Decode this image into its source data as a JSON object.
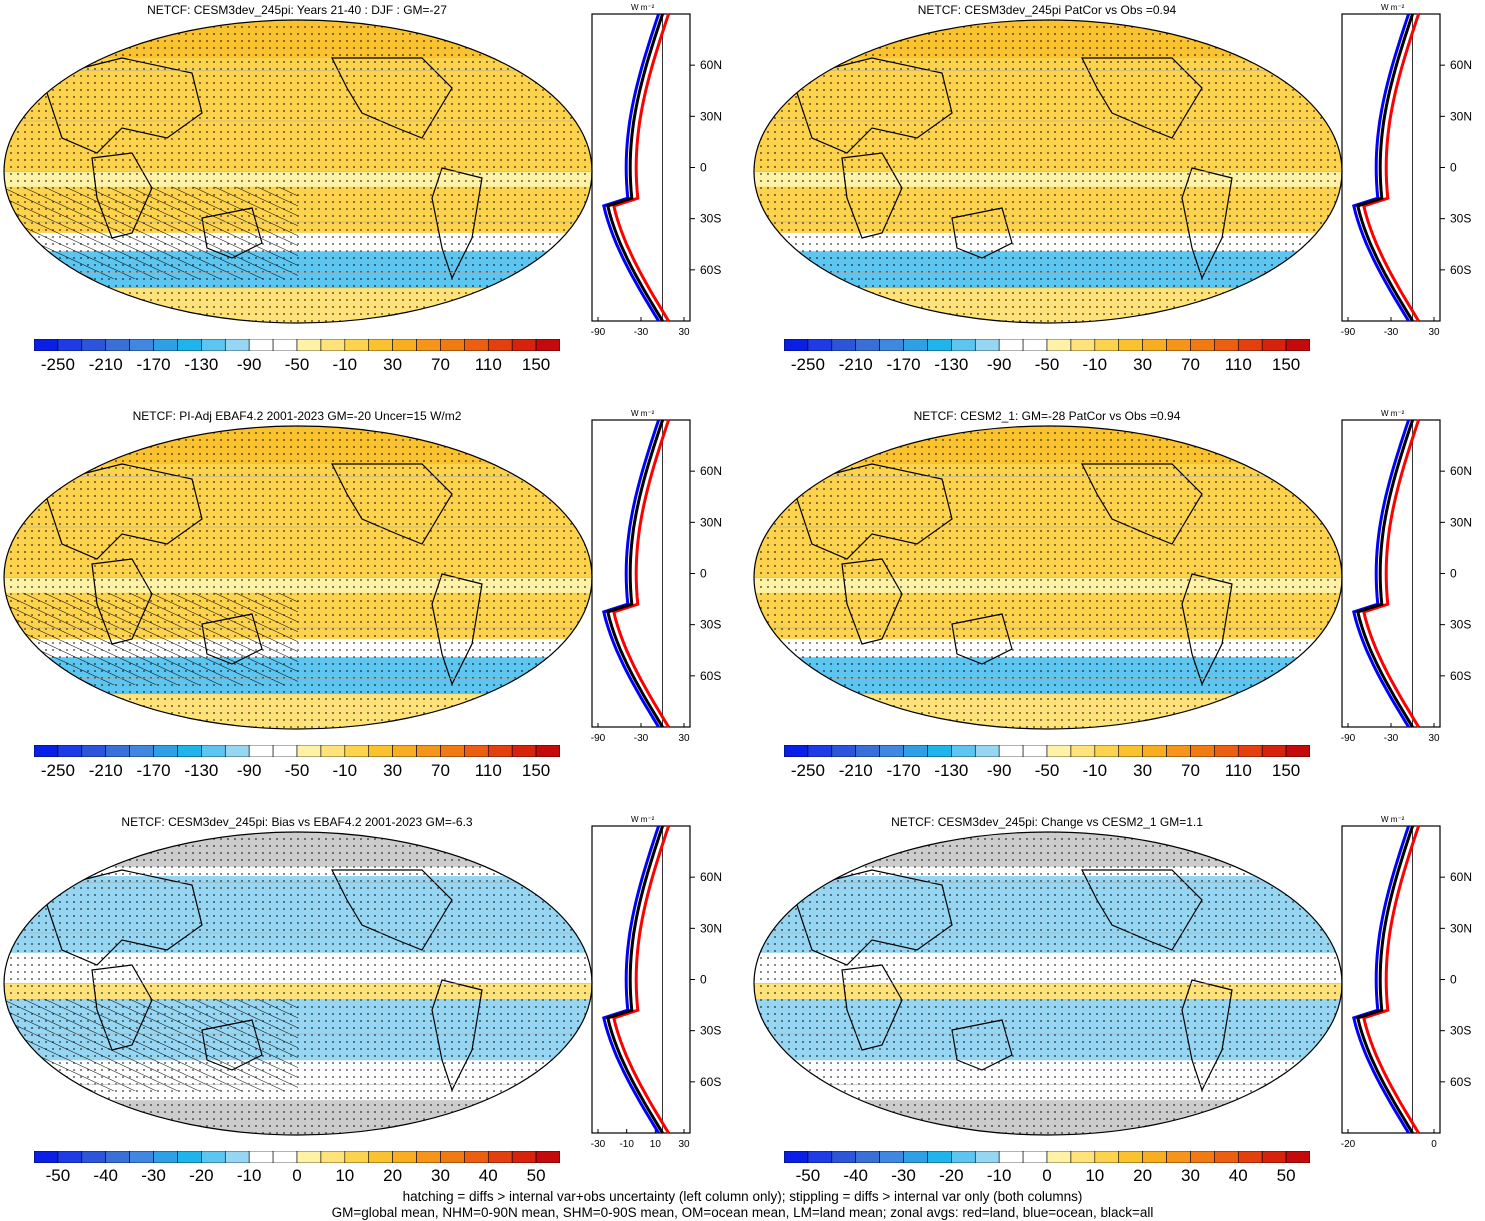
{
  "panels": [
    {
      "title": "NETCF: CESM3dev_245pi: Years 21-40 : DJF : GM=-27",
      "kind": "abs",
      "hatching": true,
      "zonal_ticks": [
        "-90",
        "-30",
        "30"
      ]
    },
    {
      "title": "NETCF: CESM3dev_245pi PatCor vs Obs =0.94",
      "kind": "abs",
      "hatching": false,
      "zonal_ticks": [
        "-90",
        "-30",
        "30"
      ]
    },
    {
      "title": "NETCF: PI-Adj EBAF4.2 2001-2023 GM=-20 Uncer=15 W/m2",
      "kind": "abs",
      "hatching": true,
      "zonal_ticks": [
        "-90",
        "-30",
        "30"
      ]
    },
    {
      "title": "NETCF: CESM2_1: GM=-28 PatCor vs Obs =0.94",
      "kind": "abs",
      "hatching": false,
      "zonal_ticks": [
        "-90",
        "-30",
        "30"
      ]
    },
    {
      "title": "NETCF: CESM3dev_245pi: Bias vs EBAF4.2 2001-2023 GM=-6.3",
      "kind": "diff",
      "hatching": true,
      "zonal_ticks": [
        "-30",
        "-10",
        "10",
        "30"
      ]
    },
    {
      "title": "NETCF: CESM3dev_245pi: Change vs CESM2_1 GM=1.1",
      "kind": "diff",
      "hatching": false,
      "zonal_ticks": [
        "-20",
        "0"
      ]
    }
  ],
  "zonal_unit": "W m⁻²",
  "lat_labels": [
    "60N",
    "30N",
    "0",
    "30S",
    "60S"
  ],
  "colorbar_abs": {
    "labels": [
      "-250",
      "-210",
      "-170",
      "-130",
      "-90",
      "-50",
      "-10",
      "30",
      "70",
      "110",
      "150"
    ],
    "colors": [
      "#0a1fe6",
      "#1f3be8",
      "#2d55dc",
      "#3a6fd8",
      "#3f87e0",
      "#2f9fe6",
      "#1fb4ec",
      "#5cc6f0",
      "#96d6f2",
      "#ffffff",
      "#ffffff",
      "#fff2a6",
      "#ffe27a",
      "#fdd34e",
      "#fbc230",
      "#f9ae22",
      "#f7951a",
      "#f27a12",
      "#ec5e10",
      "#e4400e",
      "#d8230c",
      "#c40a0a"
    ]
  },
  "colorbar_diff": {
    "labels": [
      "-50",
      "-40",
      "-30",
      "-20",
      "-10",
      "0",
      "10",
      "20",
      "30",
      "40",
      "50"
    ],
    "colors": [
      "#0a1fe6",
      "#1f3be8",
      "#2d55dc",
      "#3a6fd8",
      "#3f87e0",
      "#2f9fe6",
      "#1fb4ec",
      "#5cc6f0",
      "#96d6f2",
      "#ffffff",
      "#ffffff",
      "#fff2a6",
      "#ffe27a",
      "#fdd34e",
      "#fbc230",
      "#f9ae22",
      "#f7951a",
      "#f27a12",
      "#ec5e10",
      "#e4400e",
      "#d8230c",
      "#c40a0a"
    ]
  },
  "footer": {
    "line1": "hatching = diffs > internal var+obs uncertainty (left column only); stippling = diffs > internal var only (both columns)",
    "line2": "GM=global mean, NHM=0-90N mean, SHM=0-90S mean, OM=ocean mean, LM=land mean; zonal avgs: red=land, blue=ocean, black=all"
  },
  "colors": {
    "land_line": "#ff0000",
    "ocean_line": "#0000ff",
    "all_line": "#000000",
    "yellow_field": "#fdd34e",
    "blue_field": "#5cc6f0",
    "gray_missing": "#cccccc"
  }
}
